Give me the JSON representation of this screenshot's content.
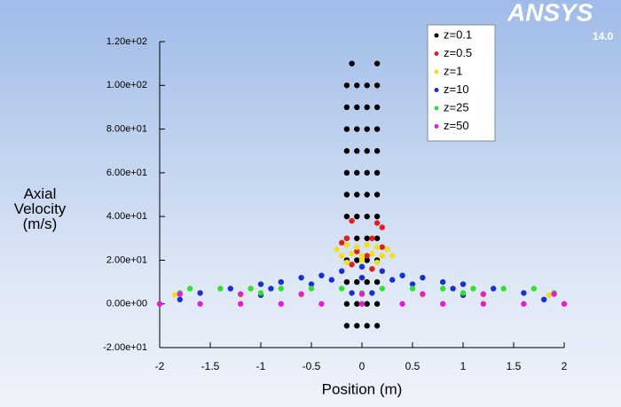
{
  "chart_data": {
    "type": "scatter",
    "logo": "ANSYS",
    "version": "14.0",
    "xlabel": "Position (m)",
    "ylabel": "Axial Velocity (m/s)",
    "xlim": [
      -2,
      2
    ],
    "xticks": [
      -2,
      -1.5,
      -1,
      -0.5,
      0,
      0.5,
      1,
      1.5,
      2
    ],
    "ylim": [
      -20,
      120
    ],
    "yticks": [
      {
        "value": -20,
        "label": "-2.00e+01"
      },
      {
        "value": 0,
        "label": "0.00e+00"
      },
      {
        "value": 20,
        "label": "2.00e+01"
      },
      {
        "value": 40,
        "label": "4.00e+01"
      },
      {
        "value": 60,
        "label": "6.00e+01"
      },
      {
        "value": 80,
        "label": "8.00e+01"
      },
      {
        "value": 100,
        "label": "1.00e+02"
      },
      {
        "value": 120,
        "label": "1.20e+02"
      }
    ],
    "legend": "upper right",
    "series": [
      {
        "name": "z=0.1",
        "color": "#000000",
        "x": [
          -0.15,
          -0.05,
          0.05,
          0.15,
          -0.15,
          -0.05,
          0.05,
          0.15,
          -0.15,
          -0.05,
          0.05,
          0.15,
          -0.15,
          -0.05,
          0.05,
          0.15,
          -0.15,
          -0.05,
          0.05,
          0.15,
          -0.15,
          -0.05,
          0.05,
          0.15,
          -0.15,
          -0.05,
          0.05,
          0.15,
          -0.15,
          -0.05,
          0.05,
          0.15,
          -0.15,
          -0.05,
          0.05,
          0.15,
          -0.15,
          -0.05,
          0.05,
          0.15,
          -0.15,
          -0.05,
          0.05,
          0.15,
          -0.15,
          -0.05,
          0.05,
          0.15,
          -0.1,
          0.15
        ],
        "y": [
          -10,
          -10,
          -10,
          -10,
          0,
          0,
          0,
          0,
          10,
          10,
          10,
          10,
          20,
          20,
          20,
          20,
          30,
          30,
          30,
          30,
          40,
          40,
          40,
          40,
          50,
          50,
          50,
          50,
          60,
          60,
          60,
          60,
          70,
          70,
          70,
          70,
          80,
          80,
          80,
          80,
          90,
          90,
          90,
          90,
          100,
          100,
          100,
          100,
          110,
          110
        ]
      },
      {
        "name": "z=0.5",
        "color": "#e02020",
        "x": [
          -0.1,
          0.15,
          0.2,
          -0.15,
          0.1,
          -0.2,
          0.2,
          -0.05,
          0.05,
          -0.1,
          0.1,
          0
        ],
        "y": [
          38,
          37,
          35,
          30,
          30,
          28,
          26,
          24,
          22,
          18,
          16,
          12
        ]
      },
      {
        "name": "z=1",
        "color": "#f0e020",
        "x": [
          -0.25,
          -0.15,
          -0.05,
          0.05,
          0.15,
          0.25,
          -0.2,
          -0.1,
          0,
          0.1,
          0.2,
          0.3,
          -0.15,
          0,
          0.15,
          -1.85,
          -1.2,
          -0.6,
          0.6,
          1.2,
          1.85
        ],
        "y": [
          25,
          27,
          26,
          27,
          26,
          25,
          22,
          23,
          22,
          23,
          22,
          22,
          19,
          20,
          19,
          4,
          4,
          4,
          4,
          4,
          4
        ]
      },
      {
        "name": "z=10",
        "color": "#1830d0",
        "x": [
          -1.6,
          -1.3,
          -1,
          -0.8,
          -0.6,
          -0.4,
          -0.2,
          0,
          0.2,
          0.4,
          0.6,
          0.8,
          1,
          1.3,
          1.6,
          -0.9,
          -0.5,
          -0.3,
          0,
          0.3,
          0.5,
          0.9,
          -0.1,
          0.1,
          -1,
          1,
          -1.8,
          1.8
        ],
        "y": [
          5,
          7,
          9,
          10,
          12,
          13,
          15,
          17,
          15,
          13,
          12,
          10,
          9,
          7,
          5,
          7,
          9,
          11,
          12,
          11,
          9,
          7,
          5,
          5,
          4,
          4,
          2,
          2
        ]
      },
      {
        "name": "z=25",
        "color": "#30e030",
        "x": [
          -1.7,
          -1.4,
          -1.1,
          -0.8,
          -0.5,
          -0.2,
          0.2,
          0.5,
          0.8,
          1.1,
          1.4,
          1.7,
          -1.8,
          -1,
          0,
          1,
          1.9
        ],
        "y": [
          7,
          7,
          7,
          7,
          7,
          7,
          7,
          7,
          7,
          7,
          7,
          7,
          5,
          5,
          5,
          5,
          5
        ]
      },
      {
        "name": "z=50",
        "color": "#e020d0",
        "x": [
          -1.8,
          -1.2,
          -0.6,
          0,
          0.6,
          1.2,
          1.9,
          -2,
          -1.6,
          -1.2,
          -0.8,
          -0.4,
          0,
          0.4,
          0.8,
          1.2,
          1.6,
          2
        ],
        "y": [
          4.5,
          4.5,
          4.5,
          4.5,
          4.5,
          4.5,
          4.5,
          0,
          0,
          0,
          0,
          0,
          0,
          0,
          0,
          0,
          0,
          0
        ]
      }
    ]
  }
}
